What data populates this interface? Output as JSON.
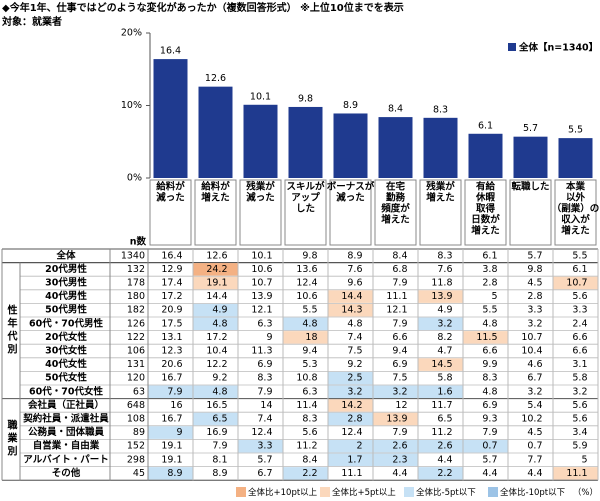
{
  "title": "◆今年1年、仕事ではどのような変化があったか（複数回答形式） ※上位10位までを表示",
  "subtitle": "対象：就業者",
  "chart_data": {
    "type": "bar",
    "categories": [
      [
        "給料が",
        "減った"
      ],
      [
        "給料が",
        "増えた"
      ],
      [
        "残業が",
        "減った"
      ],
      [
        "スキルが",
        "アップ",
        "した"
      ],
      [
        "ボーナスが",
        "減った"
      ],
      [
        "在宅",
        "勤務",
        "頻度が",
        "増えた"
      ],
      [
        "残業が",
        "増えた"
      ],
      [
        "有給",
        "休暇",
        "取得",
        "日数が",
        "増えた"
      ],
      [
        "転職した"
      ],
      [
        "本業",
        "以外",
        "（副業）の",
        "収入が",
        "増えた"
      ]
    ],
    "series": [
      {
        "name": "全体【n=1340】",
        "color": "#1f3a8f",
        "values": [
          16.4,
          12.6,
          10.1,
          9.8,
          8.9,
          8.4,
          8.3,
          6.1,
          5.7,
          5.5
        ]
      }
    ],
    "ylim": [
      0,
      20
    ],
    "yticks": [
      {
        "value": 0,
        "label": "0%"
      },
      {
        "value": 10,
        "label": "10%"
      },
      {
        "value": 20,
        "label": "20%"
      }
    ],
    "legend": "upper-right"
  },
  "table": {
    "n_header": "n数",
    "total": {
      "label": "全体",
      "n": 1340,
      "values": [
        16.4,
        12.6,
        10.1,
        9.8,
        8.9,
        8.4,
        8.3,
        6.1,
        5.7,
        5.5
      ],
      "shade": [
        null,
        null,
        null,
        null,
        null,
        null,
        null,
        null,
        null,
        null
      ]
    },
    "groups": [
      {
        "label": "性年代別",
        "rows": [
          {
            "label": "20代男性",
            "n": 132,
            "values": [
              12.9,
              24.2,
              10.6,
              13.6,
              7.6,
              6.8,
              7.6,
              3.8,
              9.8,
              6.1
            ],
            "shade": [
              null,
              0,
              null,
              null,
              null,
              null,
              null,
              null,
              null,
              null
            ]
          },
          {
            "label": "30代男性",
            "n": 178,
            "values": [
              17.4,
              19.1,
              10.7,
              12.4,
              9.6,
              7.9,
              11.8,
              2.8,
              4.5,
              10.7
            ],
            "shade": [
              null,
              1,
              null,
              null,
              null,
              null,
              null,
              null,
              null,
              1
            ]
          },
          {
            "label": "40代男性",
            "n": 180,
            "values": [
              17.2,
              14.4,
              13.9,
              10.6,
              14.4,
              11.1,
              13.9,
              5.0,
              2.8,
              5.6
            ],
            "shade": [
              null,
              null,
              null,
              null,
              1,
              null,
              1,
              null,
              null,
              null
            ]
          },
          {
            "label": "50代男性",
            "n": 182,
            "values": [
              20.9,
              4.9,
              12.1,
              5.5,
              14.3,
              12.1,
              4.9,
              5.5,
              3.3,
              3.3
            ],
            "shade": [
              null,
              2,
              null,
              null,
              1,
              null,
              null,
              null,
              null,
              null
            ]
          },
          {
            "label": "60代・70代男性",
            "n": 126,
            "values": [
              17.5,
              4.8,
              6.3,
              4.8,
              4.8,
              7.9,
              3.2,
              4.8,
              3.2,
              2.4
            ],
            "shade": [
              null,
              2,
              null,
              2,
              null,
              null,
              2,
              null,
              null,
              null
            ]
          },
          {
            "label": "20代女性",
            "n": 122,
            "values": [
              13.1,
              17.2,
              9.0,
              18.0,
              7.4,
              6.6,
              8.2,
              11.5,
              10.7,
              6.6
            ],
            "shade": [
              null,
              null,
              null,
              1,
              null,
              null,
              null,
              1,
              null,
              null
            ]
          },
          {
            "label": "30代女性",
            "n": 106,
            "values": [
              12.3,
              10.4,
              11.3,
              9.4,
              7.5,
              9.4,
              4.7,
              6.6,
              10.4,
              6.6
            ],
            "shade": [
              null,
              null,
              null,
              null,
              null,
              null,
              null,
              null,
              null,
              null
            ]
          },
          {
            "label": "40代女性",
            "n": 131,
            "values": [
              20.6,
              12.2,
              6.9,
              5.3,
              9.2,
              6.9,
              14.5,
              9.9,
              4.6,
              3.1
            ],
            "shade": [
              null,
              null,
              null,
              null,
              null,
              null,
              1,
              null,
              null,
              null
            ]
          },
          {
            "label": "50代女性",
            "n": 120,
            "values": [
              16.7,
              9.2,
              8.3,
              10.8,
              2.5,
              7.5,
              5.8,
              8.3,
              6.7,
              5.8
            ],
            "shade": [
              null,
              null,
              null,
              null,
              2,
              null,
              null,
              null,
              null,
              null
            ]
          },
          {
            "label": "60代・70代女性",
            "n": 63,
            "values": [
              7.9,
              4.8,
              7.9,
              6.3,
              3.2,
              3.2,
              1.6,
              4.8,
              3.2,
              3.2
            ],
            "shade": [
              2,
              2,
              null,
              null,
              2,
              2,
              2,
              null,
              null,
              null
            ]
          }
        ]
      },
      {
        "label": "職業別",
        "rows": [
          {
            "label": "会社員（正社員）",
            "n": 648,
            "values": [
              16.0,
              16.5,
              14.0,
              11.4,
              14.2,
              12.0,
              11.7,
              6.9,
              5.4,
              5.6
            ],
            "shade": [
              null,
              null,
              null,
              null,
              1,
              null,
              null,
              null,
              null,
              null
            ]
          },
          {
            "label": "契約社員・派遣社員",
            "n": 108,
            "values": [
              16.7,
              6.5,
              7.4,
              8.3,
              2.8,
              13.9,
              6.5,
              9.3,
              10.2,
              5.6
            ],
            "shade": [
              null,
              2,
              null,
              null,
              2,
              1,
              null,
              null,
              null,
              null
            ]
          },
          {
            "label": "公務員・団体職員",
            "n": 89,
            "values": [
              9.0,
              16.9,
              12.4,
              5.6,
              12.4,
              7.9,
              11.2,
              7.9,
              4.5,
              3.4
            ],
            "shade": [
              2,
              null,
              null,
              null,
              null,
              null,
              null,
              null,
              null,
              null
            ]
          },
          {
            "label": "自営業・自由業",
            "n": 152,
            "values": [
              19.1,
              7.9,
              3.3,
              11.2,
              2.0,
              2.6,
              2.6,
              0.7,
              0.7,
              5.9
            ],
            "shade": [
              null,
              null,
              2,
              null,
              2,
              2,
              2,
              2,
              null,
              null
            ]
          },
          {
            "label": "アルバイト・パート",
            "n": 298,
            "values": [
              19.1,
              8.1,
              5.7,
              8.4,
              1.7,
              2.3,
              4.4,
              5.7,
              7.7,
              5.0
            ],
            "shade": [
              null,
              null,
              null,
              null,
              2,
              2,
              null,
              null,
              null,
              null
            ]
          },
          {
            "label": "その他",
            "n": 45,
            "values": [
              8.9,
              8.9,
              6.7,
              2.2,
              11.1,
              4.4,
              2.2,
              4.4,
              4.4,
              11.1
            ],
            "shade": [
              2,
              null,
              null,
              2,
              null,
              null,
              2,
              null,
              null,
              1
            ]
          }
        ]
      }
    ],
    "legend": [
      {
        "label": "全体比+10pt以上",
        "color": "#f4b183"
      },
      {
        "label": "全体比+5pt以上",
        "color": "#fbd8bc"
      },
      {
        "label": "全体比-5pt以下",
        "color": "#c6e1f5"
      },
      {
        "label": "全体比-10pt以下",
        "color": "#9cc3e6"
      }
    ],
    "unit": "（%）"
  }
}
